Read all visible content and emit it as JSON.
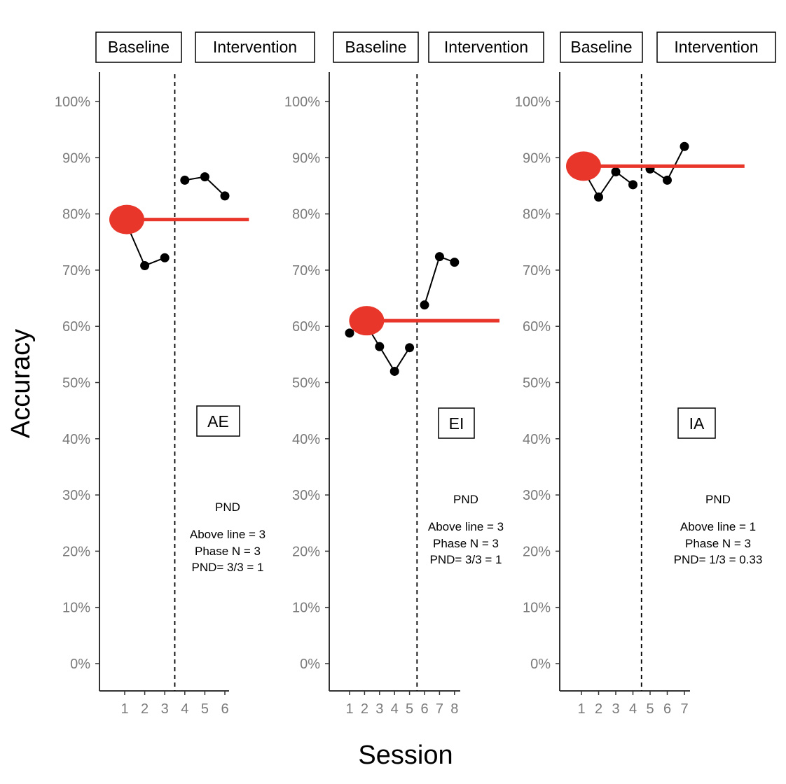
{
  "chart_data": [
    {
      "type": "line",
      "phase_labels": [
        "Baseline",
        "Intervention"
      ],
      "label": "AE",
      "x_ticks": [
        "1",
        "2",
        "3",
        "4",
        "5",
        "6"
      ],
      "y_ticks": [
        "0%",
        "10%",
        "20%",
        "30%",
        "40%",
        "50%",
        "60%",
        "70%",
        "80%",
        "90%",
        "100%"
      ],
      "ylim": [
        0,
        100
      ],
      "xlim": [
        0,
        6.3
      ],
      "phase_change_x": 3.5,
      "series": [
        {
          "x": [
            1,
            2,
            3
          ],
          "y": [
            79,
            70.8,
            72.2
          ]
        },
        {
          "x": [
            4,
            5,
            6
          ],
          "y": [
            86,
            86.6,
            83.2
          ]
        }
      ],
      "reference_line": {
        "x0": 1,
        "x1": 7.2,
        "y": 79
      },
      "pnd": {
        "heading": "PND",
        "lines": [
          "Above line = 3",
          "Phase N = 3",
          "PND= 3/3 = 1"
        ]
      }
    },
    {
      "type": "line",
      "phase_labels": [
        "Baseline",
        "Intervention"
      ],
      "label": "EI",
      "x_ticks": [
        "1",
        "2",
        "3",
        "4",
        "5",
        "6",
        "7",
        "8"
      ],
      "y_ticks": [
        "0%",
        "10%",
        "20%",
        "30%",
        "40%",
        "50%",
        "60%",
        "70%",
        "80%",
        "90%",
        "100%"
      ],
      "ylim": [
        0,
        100
      ],
      "xlim": [
        -0.2,
        8.4
      ],
      "phase_change_x": 5.5,
      "series": [
        {
          "x": [
            1,
            2,
            3,
            4,
            5
          ],
          "y": [
            58.8,
            60.8,
            56.4,
            52,
            56.2
          ]
        },
        {
          "x": [
            6,
            7,
            8
          ],
          "y": [
            63.8,
            72.4,
            71.4
          ]
        }
      ],
      "reference_line": {
        "x0": 2,
        "x1": 11,
        "y": 61
      },
      "pnd": {
        "heading": "PND",
        "lines": [
          "Above line = 3",
          "Phase N = 3",
          "PND= 3/3 = 1"
        ]
      }
    },
    {
      "type": "line",
      "phase_labels": [
        "Baseline",
        "Intervention"
      ],
      "label": "IA",
      "x_ticks": [
        "1",
        "2",
        "3",
        "4",
        "5",
        "6",
        "7"
      ],
      "y_ticks": [
        "0%",
        "10%",
        "20%",
        "30%",
        "40%",
        "50%",
        "60%",
        "70%",
        "80%",
        "90%",
        "100%"
      ],
      "ylim": [
        0,
        100
      ],
      "xlim": [
        -0.2,
        7.4
      ],
      "phase_change_x": 4.5,
      "series": [
        {
          "x": [
            1,
            2,
            3,
            4
          ],
          "y": [
            88.4,
            83,
            87.5,
            85.2
          ]
        },
        {
          "x": [
            5,
            6,
            7
          ],
          "y": [
            88,
            86,
            92
          ]
        }
      ],
      "reference_line": {
        "x0": 1,
        "x1": 10.5,
        "y": 88.5
      },
      "pnd": {
        "heading": "PND",
        "lines": [
          "Above line = 1",
          "Phase N = 3",
          "PND= 1/3 = 0.33"
        ]
      }
    }
  ],
  "y_axis_title": "Accuracy",
  "x_axis_title": "Session",
  "colors": {
    "reference": "#e8362b",
    "axis": "#333333",
    "tick_text": "#7a7a7a",
    "points": "#000000"
  }
}
